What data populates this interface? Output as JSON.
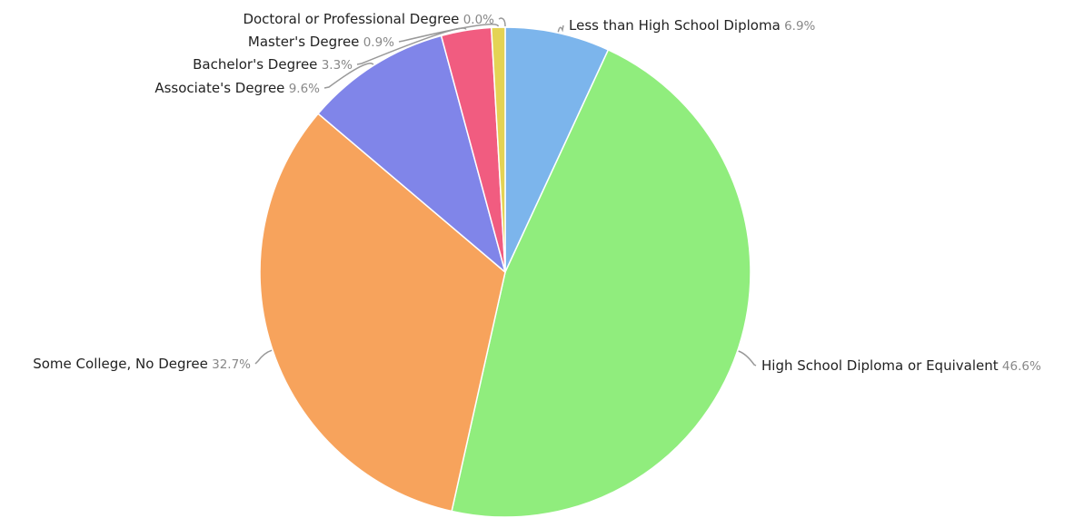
{
  "chart_data": {
    "type": "pie",
    "title": "",
    "start_angle_deg": 0,
    "direction": "clockwise",
    "legend": "none",
    "slices": [
      {
        "label": "Less than High School Diploma",
        "value": 6.9,
        "value_label": "6.9%",
        "color": "#7cb5ec"
      },
      {
        "label": "High School Diploma or Equivalent",
        "value": 46.6,
        "value_label": "46.6%",
        "color": "#90ed7d"
      },
      {
        "label": "Some College, No Degree",
        "value": 32.7,
        "value_label": "32.7%",
        "color": "#f7a35c"
      },
      {
        "label": "Associate's Degree",
        "value": 9.6,
        "value_label": "9.6%",
        "color": "#8085e9"
      },
      {
        "label": "Bachelor's Degree",
        "value": 3.3,
        "value_label": "3.3%",
        "color": "#f15c80"
      },
      {
        "label": "Master's Degree",
        "value": 0.9,
        "value_label": "0.9%",
        "color": "#e4d354"
      },
      {
        "label": "Doctoral or Professional Degree",
        "value": 0.0,
        "value_label": "0.0%",
        "color": "#2b908f"
      }
    ]
  }
}
